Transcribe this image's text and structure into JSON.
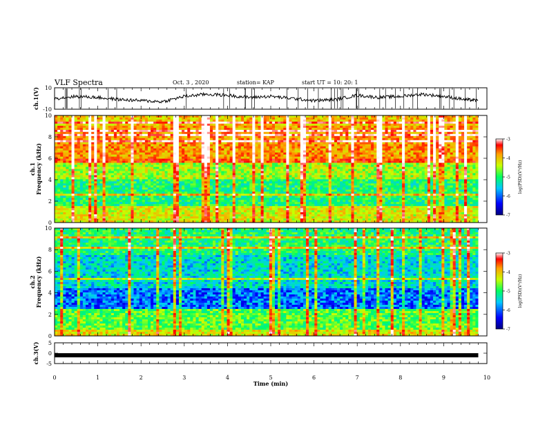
{
  "header": {
    "title": "VLF Spectra",
    "date": "Oct. 3 , 2020",
    "station": "station= KAP",
    "start": "start UT = 10: 20: 1"
  },
  "chart_data": [
    {
      "type": "line",
      "panel": "ch1-waveform",
      "ylabel": "ch.1(V)",
      "ylim": [
        -10,
        10
      ],
      "yticks": [
        "10",
        "-10"
      ],
      "x": [
        0,
        0.5,
        1,
        1.5,
        2,
        2.5,
        3,
        3.5,
        4,
        4.5,
        5,
        5.5,
        6,
        6.5,
        7,
        7.5,
        8,
        8.5,
        9,
        9.5,
        9.8
      ],
      "values": [
        0,
        2,
        1,
        -1,
        -2,
        -3,
        2,
        4,
        3,
        1,
        2,
        0,
        -2,
        -1,
        3,
        1,
        2,
        4,
        2,
        -1,
        -2
      ]
    },
    {
      "type": "heatmap",
      "panel": "ch1-spectrogram",
      "ylabel": "ch.1\nFrequency (kHz)",
      "ylim": [
        0,
        10
      ],
      "yticks": [
        "0",
        "2",
        "4",
        "6",
        "8",
        "10"
      ],
      "colorbar": {
        "label": "log(PSD)(V²/Hz)",
        "range": [
          -7,
          -3
        ],
        "ticks": [
          "-3",
          "-4",
          "-5",
          "-6",
          "-7"
        ]
      }
    },
    {
      "type": "heatmap",
      "panel": "ch2-spectrogram",
      "ylabel": "ch.2\nFrequency (kHz)",
      "ylim": [
        0,
        10
      ],
      "yticks": [
        "0",
        "2",
        "4",
        "6",
        "8",
        "10"
      ],
      "colorbar": {
        "label": "log(PSD)(V²/Hz)",
        "range": [
          -7,
          -3
        ],
        "ticks": [
          "-3",
          "-4",
          "-5",
          "-6",
          "-7"
        ]
      }
    },
    {
      "type": "line",
      "panel": "ch3-waveform",
      "ylabel": "ch.3(V)",
      "ylim": [
        -5,
        5
      ],
      "yticks": [
        "5",
        "0",
        "-5"
      ],
      "x": [
        0,
        9.8
      ],
      "values": [
        -1,
        -1
      ]
    }
  ],
  "xaxis": {
    "label": "Time (min)",
    "xlim": [
      0,
      10
    ],
    "ticks": [
      "0",
      "1",
      "2",
      "3",
      "4",
      "5",
      "6",
      "7",
      "8",
      "9",
      "10"
    ]
  },
  "colors": {
    "axis": "#000000",
    "background": "#ffffff"
  }
}
